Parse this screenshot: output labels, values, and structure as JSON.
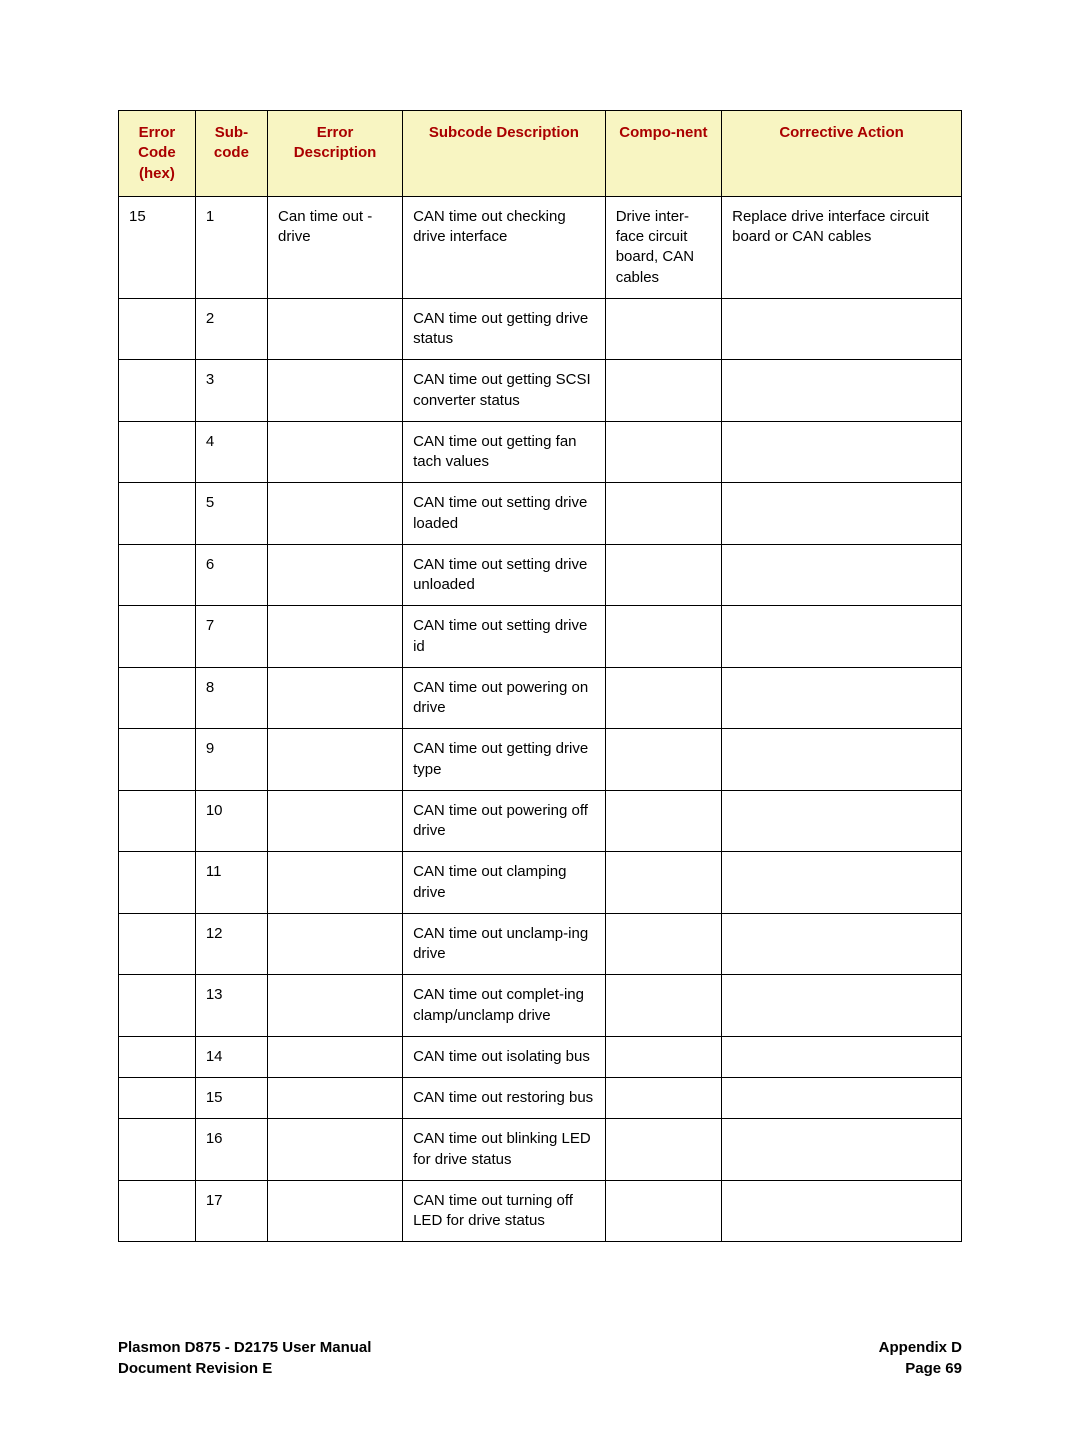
{
  "table": {
    "headers": {
      "error_code": "Error Code (hex)",
      "sub_code": "Sub-code",
      "error_desc": "Error Description",
      "subcode_desc": "Subcode Description",
      "component": "Compo-nent",
      "corrective": "Corrective Action"
    },
    "header_bg": "#f8f5c2",
    "header_color": "#aa0000",
    "border_color": "#000000",
    "rows": [
      {
        "error_code": "15",
        "sub_code": "1",
        "error_desc": "Can time out - drive",
        "subcode_desc": "CAN time out checking drive interface",
        "component": "Drive inter-face circuit board, CAN cables",
        "corrective": "Replace drive interface circuit board or CAN cables"
      },
      {
        "error_code": "",
        "sub_code": "2",
        "error_desc": "",
        "subcode_desc": "CAN time out getting drive status",
        "component": "",
        "corrective": ""
      },
      {
        "error_code": "",
        "sub_code": "3",
        "error_desc": "",
        "subcode_desc": "CAN time out getting SCSI converter status",
        "component": "",
        "corrective": ""
      },
      {
        "error_code": "",
        "sub_code": "4",
        "error_desc": "",
        "subcode_desc": "CAN time out getting fan tach values",
        "component": "",
        "corrective": ""
      },
      {
        "error_code": "",
        "sub_code": "5",
        "error_desc": "",
        "subcode_desc": "CAN time out setting drive loaded",
        "component": "",
        "corrective": ""
      },
      {
        "error_code": "",
        "sub_code": "6",
        "error_desc": "",
        "subcode_desc": "CAN time out setting drive unloaded",
        "component": "",
        "corrective": ""
      },
      {
        "error_code": "",
        "sub_code": "7",
        "error_desc": "",
        "subcode_desc": "CAN time out setting drive id",
        "component": "",
        "corrective": ""
      },
      {
        "error_code": "",
        "sub_code": "8",
        "error_desc": "",
        "subcode_desc": "CAN time out powering on drive",
        "component": "",
        "corrective": ""
      },
      {
        "error_code": "",
        "sub_code": "9",
        "error_desc": "",
        "subcode_desc": "CAN time out getting drive type",
        "component": "",
        "corrective": ""
      },
      {
        "error_code": "",
        "sub_code": "10",
        "error_desc": "",
        "subcode_desc": "CAN time out powering off drive",
        "component": "",
        "corrective": ""
      },
      {
        "error_code": "",
        "sub_code": "11",
        "error_desc": "",
        "subcode_desc": "CAN time out clamping drive",
        "component": "",
        "corrective": ""
      },
      {
        "error_code": "",
        "sub_code": "12",
        "error_desc": "",
        "subcode_desc": "CAN time out unclamp-ing drive",
        "component": "",
        "corrective": ""
      },
      {
        "error_code": "",
        "sub_code": "13",
        "error_desc": "",
        "subcode_desc": "CAN time out complet-ing clamp/unclamp drive",
        "component": "",
        "corrective": ""
      },
      {
        "error_code": "",
        "sub_code": "14",
        "error_desc": "",
        "subcode_desc": "CAN time out isolating bus",
        "component": "",
        "corrective": ""
      },
      {
        "error_code": "",
        "sub_code": "15",
        "error_desc": "",
        "subcode_desc": "CAN time out restoring bus",
        "component": "",
        "corrective": ""
      },
      {
        "error_code": "",
        "sub_code": "16",
        "error_desc": "",
        "subcode_desc": "CAN time out blinking LED for drive status",
        "component": "",
        "corrective": ""
      },
      {
        "error_code": "",
        "sub_code": "17",
        "error_desc": "",
        "subcode_desc": "CAN time out turning off LED for drive status",
        "component": "",
        "corrective": ""
      }
    ]
  },
  "footer": {
    "left_line1": "Plasmon D875 - D2175 User Manual",
    "left_line2": "Document Revision E",
    "right_line1": "Appendix D",
    "right_line2": "Page 69"
  }
}
